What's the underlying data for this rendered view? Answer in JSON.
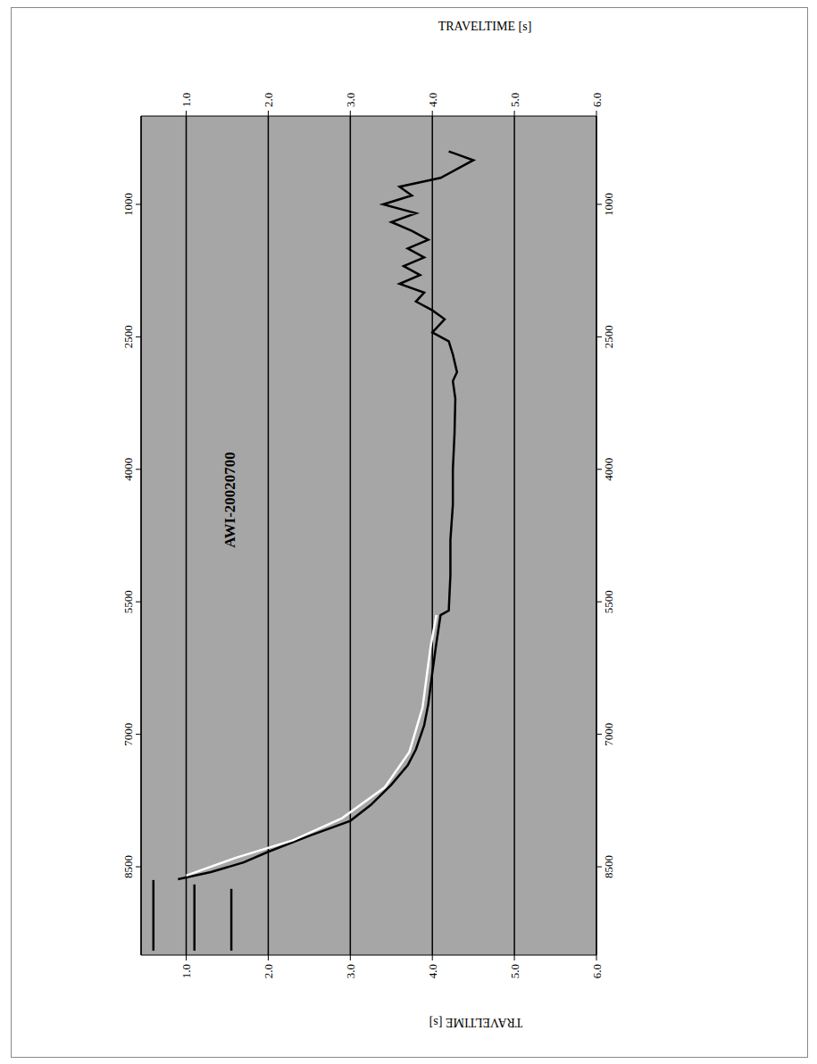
{
  "chart_data": {
    "type": "line",
    "title": "AWI-20020700",
    "x_label": "TRAVELTIME [s]",
    "xlim": [
      0.45,
      6.0
    ],
    "xticks": [
      {
        "value": 1,
        "label": "1.0"
      },
      {
        "value": 2,
        "label": "2.0"
      },
      {
        "value": 3,
        "label": "3.0"
      },
      {
        "value": 4,
        "label": "4.0"
      },
      {
        "value": 5,
        "label": "5.0"
      },
      {
        "value": 6,
        "label": "6.0"
      }
    ],
    "ylim": [
      0,
      9500
    ],
    "yticks": [
      1000,
      2500,
      4000,
      5500,
      7000,
      8500
    ],
    "grid": true,
    "series": [
      {
        "color": "#000000",
        "x": [
          0.9,
          1.3,
          1.7,
          2.0,
          2.5,
          3.0,
          3.25,
          3.5,
          3.7,
          3.8,
          3.9,
          3.95,
          4.0,
          4.05,
          4.1,
          4.2,
          4.22,
          4.22,
          4.25,
          4.25,
          4.27,
          4.28,
          4.25,
          4.3,
          4.25,
          4.2,
          4.0,
          4.15,
          4.0,
          3.8,
          3.9,
          3.6,
          3.85,
          3.65,
          3.9,
          3.7,
          3.95,
          3.75,
          3.5,
          3.8,
          3.4,
          3.75,
          3.6,
          4.1,
          4.3,
          4.5,
          4.2
        ],
        "y": [
          8640,
          8560,
          8450,
          8330,
          8150,
          7980,
          7800,
          7570,
          7350,
          7170,
          6900,
          6660,
          6300,
          5960,
          5650,
          5600,
          5200,
          4800,
          4400,
          4000,
          3600,
          3200,
          3000,
          2900,
          2700,
          2550,
          2450,
          2300,
          2200,
          2100,
          2000,
          1900,
          1800,
          1700,
          1600,
          1500,
          1400,
          1300,
          1200,
          1100,
          1000,
          900,
          800,
          700,
          600,
          500,
          400
        ]
      },
      {
        "color": "#ffffff",
        "x": [
          1.0,
          1.6,
          2.3,
          2.9,
          3.42,
          3.72,
          3.88,
          3.98,
          4.05
        ],
        "y": [
          8600,
          8400,
          8200,
          7950,
          7600,
          7200,
          6700,
          6000,
          5650
        ]
      },
      {
        "color": "#000000",
        "x": [
          0.6,
          0.6
        ],
        "y": [
          8650,
          9450
        ]
      },
      {
        "color": "#000000",
        "x": [
          1.1,
          1.1
        ],
        "y": [
          8700,
          9450
        ]
      },
      {
        "color": "#000000",
        "x": [
          1.55,
          1.55
        ],
        "y": [
          8750,
          9450
        ]
      }
    ]
  }
}
